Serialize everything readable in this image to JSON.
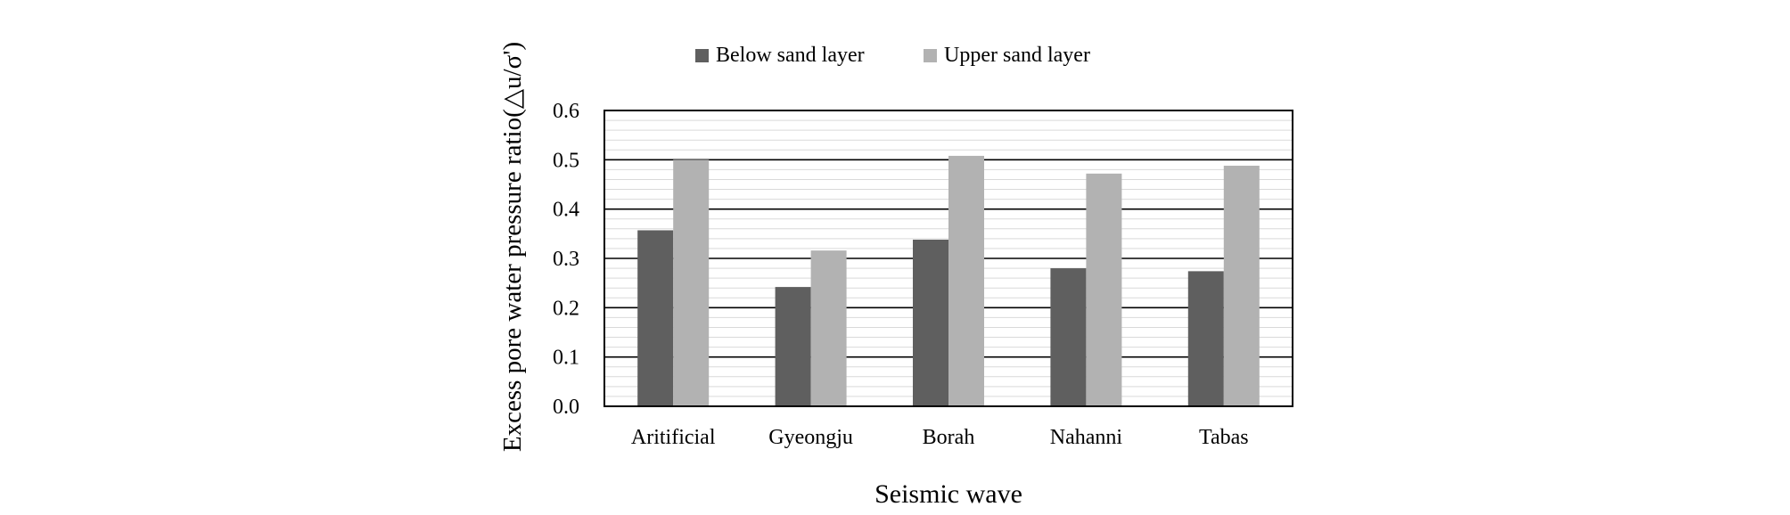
{
  "chart_data": {
    "type": "bar",
    "categories": [
      "Aritificial",
      "Gyeongju",
      "Borah",
      "Nahanni",
      "Tabas"
    ],
    "series": [
      {
        "name": "Below sand layer",
        "values": [
          0.357,
          0.242,
          0.338,
          0.28,
          0.274
        ],
        "color": "#5f5f5f"
      },
      {
        "name": "Upper sand layer",
        "values": [
          0.5,
          0.316,
          0.508,
          0.472,
          0.488
        ],
        "color": "#b2b2b2"
      }
    ],
    "xlabel": "Seismic wave",
    "ylabel": "Excess pore water pressure ratio(△u/σ')",
    "ylim": [
      0,
      0.6
    ],
    "yticks": [
      "0.0",
      "0.1",
      "0.2",
      "0.3",
      "0.4",
      "0.5",
      "0.6"
    ],
    "grid": true,
    "legend_position": "top"
  }
}
